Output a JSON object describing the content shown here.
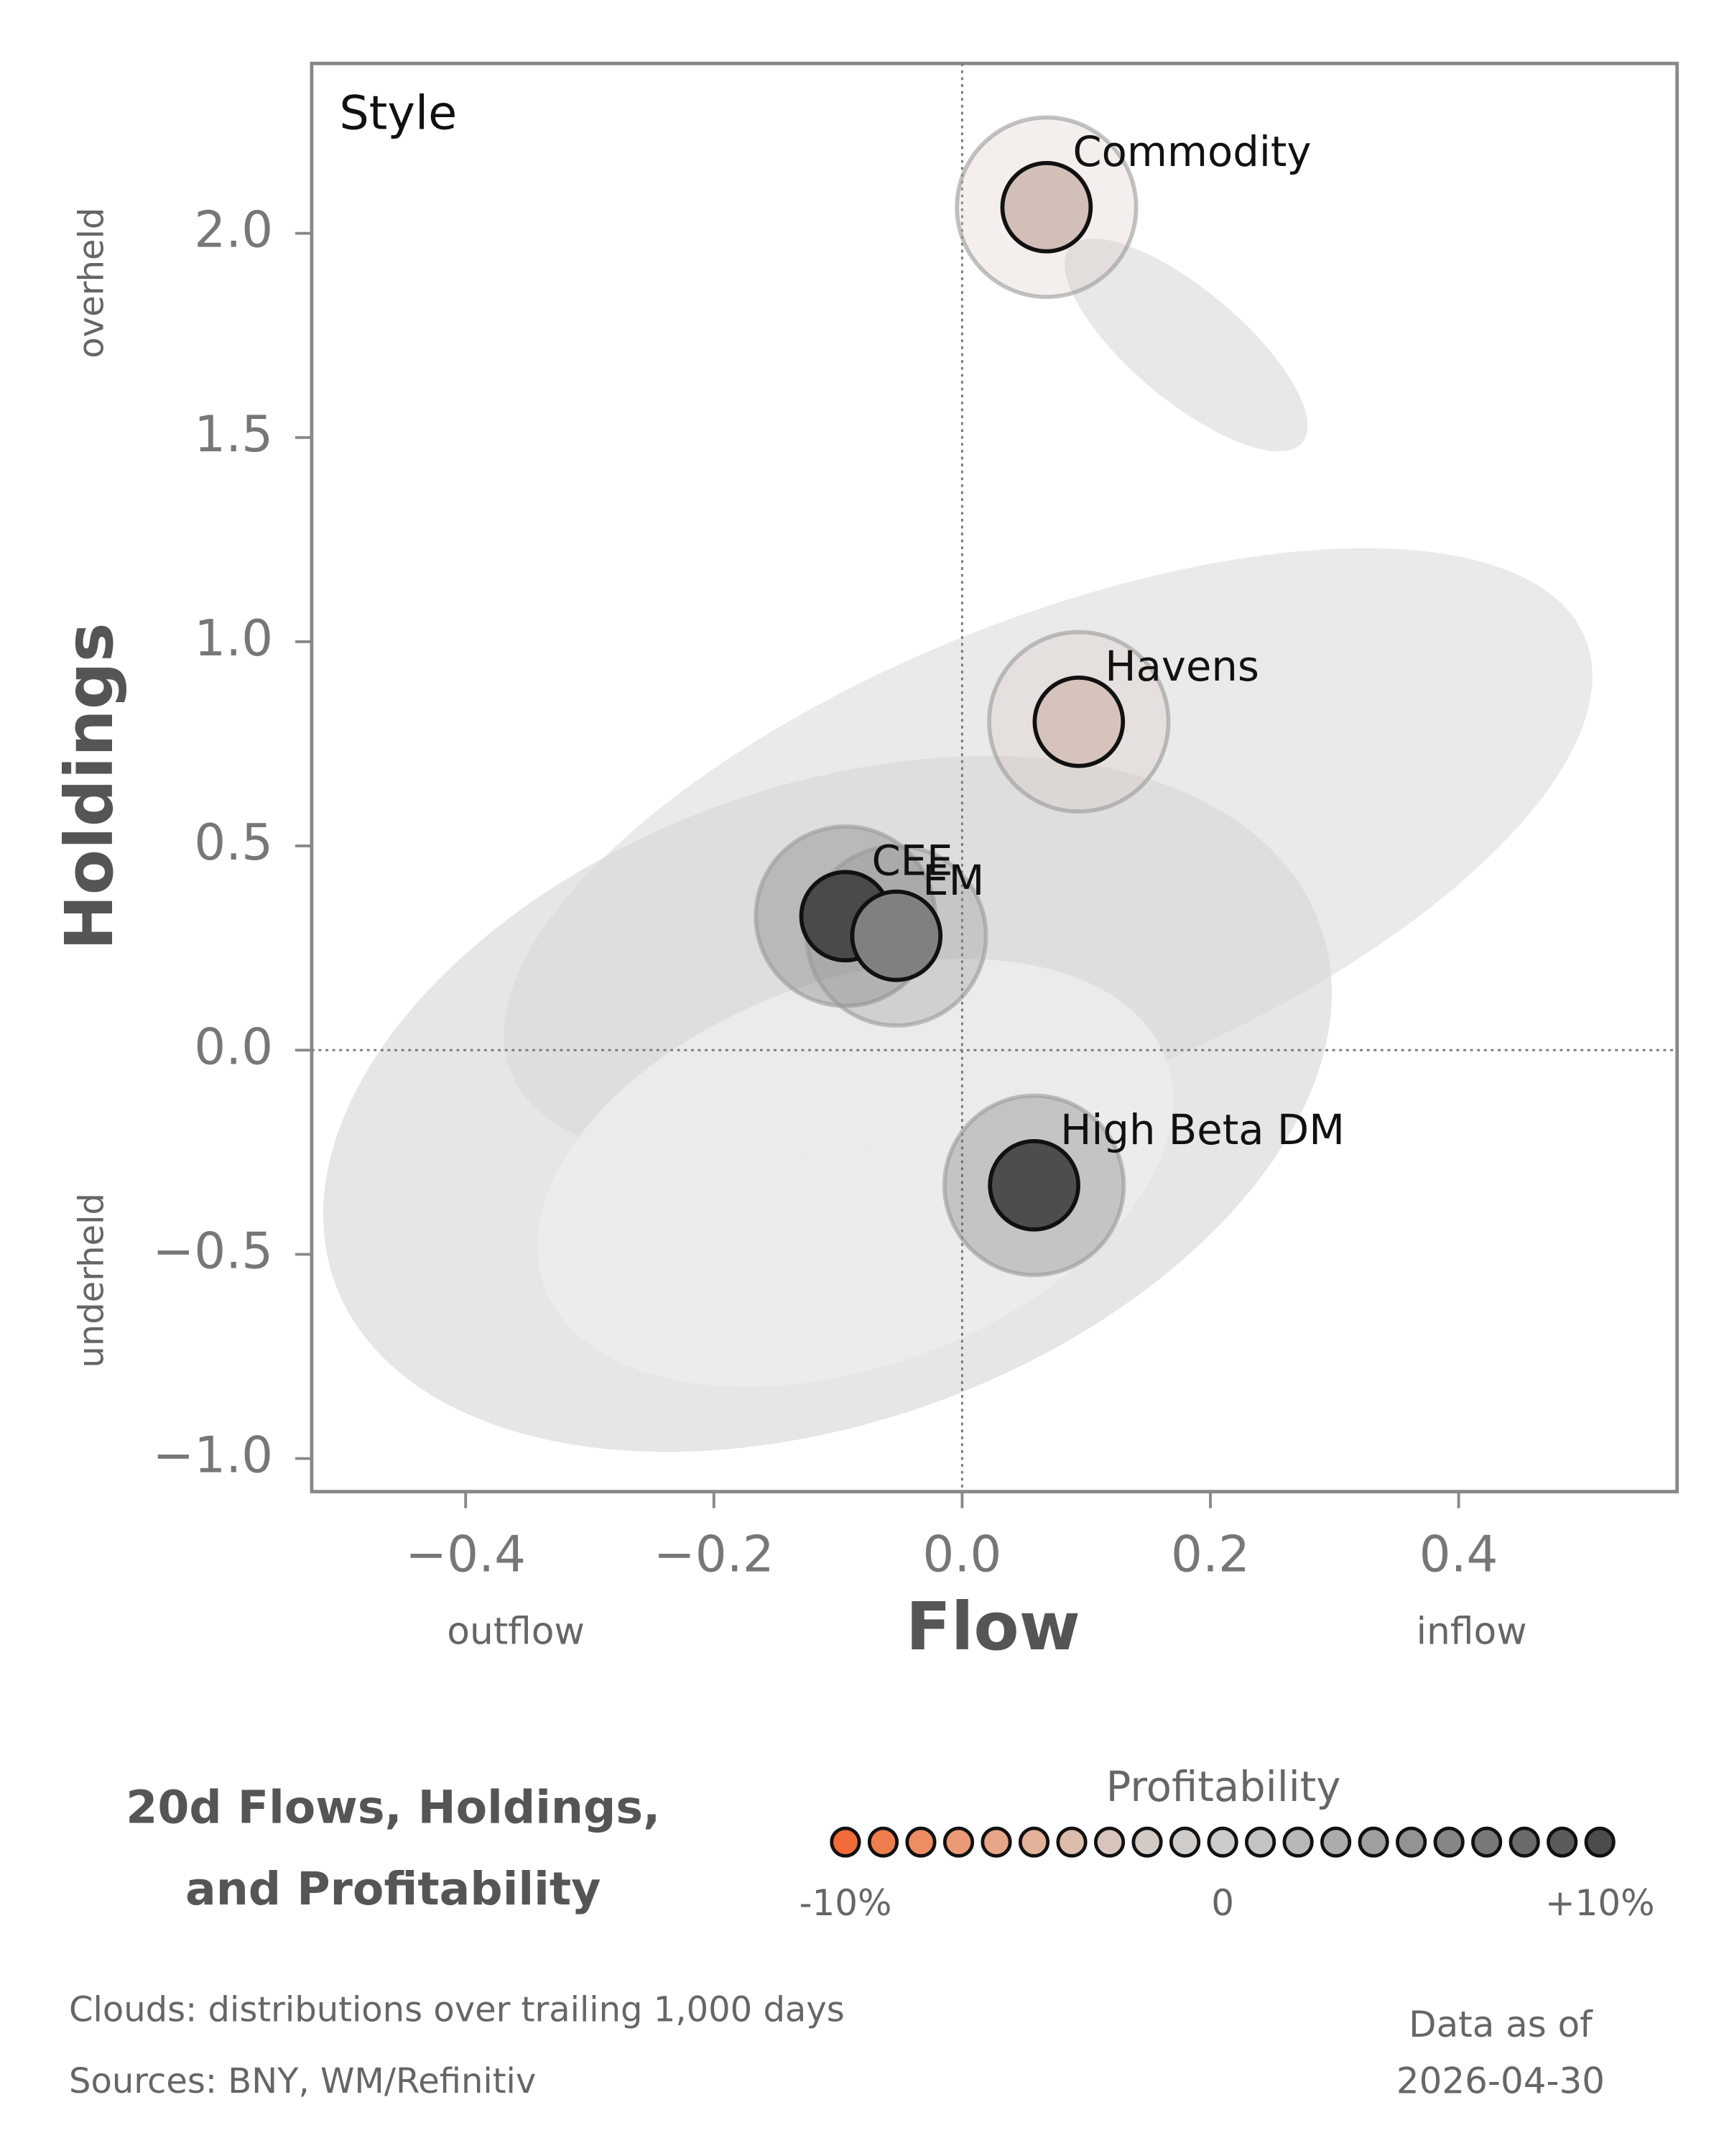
{
  "chart_data": {
    "type": "scatter",
    "corner_label": "Style",
    "xlabel": "Flow",
    "ylabel": "Holdings",
    "x_low_label": "outflow",
    "x_high_label": "inflow",
    "y_high_label": "overheld",
    "y_low_label": "underheld",
    "xlim": [
      -0.524,
      0.576
    ],
    "ylim": [
      -1.081,
      2.416
    ],
    "xticks": [
      {
        "value": -0.4,
        "label": "−0.4"
      },
      {
        "value": -0.2,
        "label": "−0.2"
      },
      {
        "value": 0,
        "label": "0.0"
      },
      {
        "value": 0.2,
        "label": "0.2"
      },
      {
        "value": 0.4,
        "label": "0.4"
      }
    ],
    "yticks": [
      {
        "value": -1,
        "label": "−1.0"
      },
      {
        "value": -0.5,
        "label": "−0.5"
      },
      {
        "value": 0,
        "label": "0.0"
      },
      {
        "value": 0.5,
        "label": "0.5"
      },
      {
        "value": 1,
        "label": "1.0"
      },
      {
        "value": 1.5,
        "label": "1.5"
      },
      {
        "value": 2,
        "label": "2.0"
      }
    ],
    "points": [
      {
        "name": "Commodity",
        "x": 0.068,
        "y": 2.064,
        "color": "#d2c0b8"
      },
      {
        "name": "Havens",
        "x": 0.094,
        "y": 0.804,
        "color": "#d6c4bc"
      },
      {
        "name": "CEE",
        "x": -0.094,
        "y": 0.328,
        "color": "#4a4a4a"
      },
      {
        "name": "EM",
        "x": -0.053,
        "y": 0.28,
        "color": "#808080"
      },
      {
        "name": "High Beta DM",
        "x": 0.058,
        "y": -0.331,
        "color": "#4d4d4d"
      }
    ],
    "title_lines": [
      "20d Flows, Holdings,",
      "and Profitability"
    ],
    "legend": {
      "title": "Profitability",
      "colors": [
        "#f26b38",
        "#f07d4e",
        "#ee8c62",
        "#eb9a76",
        "#e7a688",
        "#e2b29b",
        "#dcbcac",
        "#d7c5bb",
        "#d4cac5",
        "#d0ccca",
        "#cccccc",
        "#c4c4c4",
        "#b8b8b8",
        "#acacac",
        "#a0a0a0",
        "#939393",
        "#868686",
        "#787878",
        "#6a6a6a",
        "#5b5b5b",
        "#4c4c4c"
      ],
      "labels": [
        "-10%",
        "0",
        "+10%"
      ]
    },
    "footnotes": [
      "Clouds:  distributions over trailing 1,000 days",
      "Sources:  BNY, WM/Refinitiv"
    ],
    "date_lines": [
      "Data as of",
      "2026-04-30"
    ]
  }
}
